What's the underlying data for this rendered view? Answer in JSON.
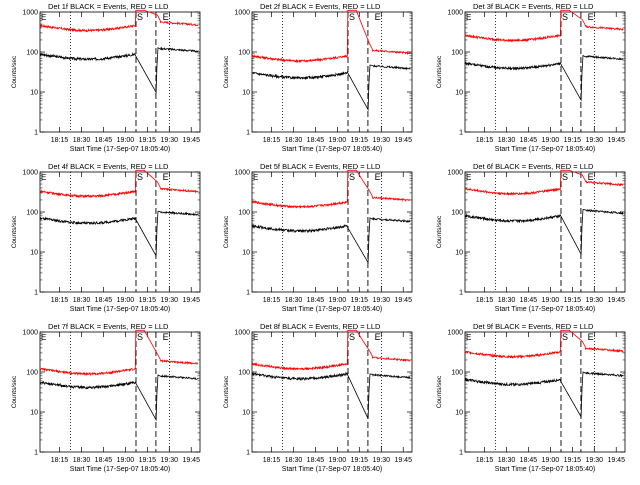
{
  "chart_data": [
    {
      "type": "line",
      "title": "Det 1f BLACK = Events, RED = LLD",
      "xlabel": "Start Time (17-Sep-07 18:05:40)",
      "ylabel": "Counts/sec",
      "yscale": "log",
      "ylim": [
        1,
        1000
      ],
      "xlim": [
        0,
        45
      ],
      "xticks": [
        "18:15",
        "18:30",
        "18:45",
        "19:00",
        "19:15",
        "19:30",
        "19:45"
      ],
      "yticks": [
        "1",
        "10",
        "100",
        "1000"
      ],
      "markers": [
        "S",
        "E"
      ],
      "red_levels": {
        "pre": 460,
        "post": 560,
        "peak": 1100
      },
      "black_levels": {
        "pre": 88,
        "post": 122
      }
    },
    {
      "type": "line",
      "title": "Det 2f BLACK = Events, RED = LLD",
      "xlabel": "Start Time (17-Sep-07 18:05:40)",
      "ylabel": "Counts/sec",
      "yscale": "log",
      "ylim": [
        1,
        1000
      ],
      "xlim": [
        0,
        45
      ],
      "xticks": [
        "18:15",
        "18:30",
        "18:45",
        "19:00",
        "19:15",
        "19:30",
        "19:45"
      ],
      "yticks": [
        "1",
        "10",
        "100",
        "1000"
      ],
      "markers": [
        "S",
        "E"
      ],
      "red_levels": {
        "pre": 80,
        "post": 110,
        "peak": 1100
      },
      "black_levels": {
        "pre": 30,
        "post": 45
      }
    },
    {
      "type": "line",
      "title": "Det 3f BLACK = Events, RED = LLD",
      "xlabel": "Start Time (17-Sep-07 18:05:40)",
      "ylabel": "Counts/sec",
      "yscale": "log",
      "ylim": [
        1,
        1000
      ],
      "xlim": [
        0,
        45
      ],
      "xticks": [
        "18:15",
        "18:30",
        "18:45",
        "19:00",
        "19:15",
        "19:30",
        "19:45"
      ],
      "yticks": [
        "1",
        "10",
        "100",
        "1000"
      ],
      "markers": [
        "S",
        "E"
      ],
      "red_levels": {
        "pre": 260,
        "post": 430,
        "peak": 1100
      },
      "black_levels": {
        "pre": 52,
        "post": 78
      }
    },
    {
      "type": "line",
      "title": "Det 4f BLACK = Events, RED = LLD",
      "xlabel": "Start Time (17-Sep-07 18:05:40)",
      "ylabel": "Counts/sec",
      "yscale": "log",
      "ylim": [
        1,
        1000
      ],
      "xlim": [
        0,
        45
      ],
      "xticks": [
        "18:15",
        "18:30",
        "18:45",
        "19:00",
        "19:15",
        "19:30",
        "19:45"
      ],
      "yticks": [
        "1",
        "10",
        "100",
        "1000"
      ],
      "markers": [
        "S",
        "E"
      ],
      "red_levels": {
        "pre": 330,
        "post": 380,
        "peak": 1100
      },
      "black_levels": {
        "pre": 70,
        "post": 100
      }
    },
    {
      "type": "line",
      "title": "Det 5f BLACK = Events, RED = LLD",
      "xlabel": "Start Time (17-Sep-07 18:05:40)",
      "ylabel": "Counts/sec",
      "yscale": "log",
      "ylim": [
        1,
        1000
      ],
      "xlim": [
        0,
        45
      ],
      "xticks": [
        "18:15",
        "18:30",
        "18:45",
        "19:00",
        "19:15",
        "19:30",
        "19:45"
      ],
      "yticks": [
        "1",
        "10",
        "100",
        "1000"
      ],
      "markers": [
        "S",
        "E"
      ],
      "red_levels": {
        "pre": 180,
        "post": 230,
        "peak": 1100
      },
      "black_levels": {
        "pre": 45,
        "post": 68
      }
    },
    {
      "type": "line",
      "title": "Det 6f BLACK = Events, RED = LLD",
      "xlabel": "Start Time (17-Sep-07 18:05:40)",
      "ylabel": "Counts/sec",
      "yscale": "log",
      "ylim": [
        1,
        1000
      ],
      "xlim": [
        0,
        45
      ],
      "xticks": [
        "18:15",
        "18:30",
        "18:45",
        "19:00",
        "19:15",
        "19:30",
        "19:45"
      ],
      "yticks": [
        "1",
        "10",
        "100",
        "1000"
      ],
      "markers": [
        "S",
        "E"
      ],
      "red_levels": {
        "pre": 380,
        "post": 560,
        "peak": 1100
      },
      "black_levels": {
        "pre": 80,
        "post": 110
      }
    },
    {
      "type": "line",
      "title": "Det 7f BLACK = Events, RED = LLD",
      "xlabel": "Start Time (17-Sep-07 18:05:40)",
      "ylabel": "Counts/sec",
      "yscale": "log",
      "ylim": [
        1,
        1000
      ],
      "xlim": [
        0,
        45
      ],
      "xticks": [
        "18:15",
        "18:30",
        "18:45",
        "19:00",
        "19:15",
        "19:30",
        "19:45"
      ],
      "yticks": [
        "1",
        "10",
        "100",
        "1000"
      ],
      "markers": [
        "S",
        "E"
      ],
      "red_levels": {
        "pre": 120,
        "post": 190,
        "peak": 1100
      },
      "black_levels": {
        "pre": 55,
        "post": 80
      }
    },
    {
      "type": "line",
      "title": "Det 8f BLACK = Events, RED = LLD",
      "xlabel": "Start Time (17-Sep-07 18:05:40)",
      "ylabel": "Counts/sec",
      "yscale": "log",
      "ylim": [
        1,
        1000
      ],
      "xlim": [
        0,
        45
      ],
      "xticks": [
        "18:15",
        "18:30",
        "18:45",
        "19:00",
        "19:15",
        "19:30",
        "19:45"
      ],
      "yticks": [
        "1",
        "10",
        "100",
        "1000"
      ],
      "markers": [
        "S",
        "E"
      ],
      "red_levels": {
        "pre": 160,
        "post": 230,
        "peak": 1100
      },
      "black_levels": {
        "pre": 90,
        "post": 85
      }
    },
    {
      "type": "line",
      "title": "Det 9f BLACK = Events, RED = LLD",
      "xlabel": "Start Time (17-Sep-07 18:05:40)",
      "ylabel": "Counts/sec",
      "yscale": "log",
      "ylim": [
        1,
        1000
      ],
      "xlim": [
        0,
        45
      ],
      "xticks": [
        "18:15",
        "18:30",
        "18:45",
        "19:00",
        "19:15",
        "19:30",
        "19:45"
      ],
      "yticks": [
        "1",
        "10",
        "100",
        "1000"
      ],
      "markers": [
        "S",
        "E"
      ],
      "red_levels": {
        "pre": 320,
        "post": 390,
        "peak": 1100
      },
      "black_levels": {
        "pre": 65,
        "post": 95
      }
    }
  ]
}
